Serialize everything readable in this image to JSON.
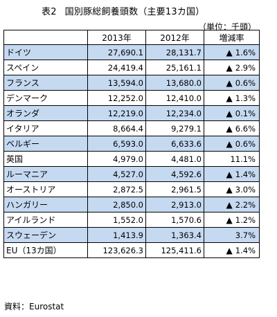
{
  "title": {
    "label": "表2",
    "text": "国別豚総飼養頭数（主要13カ国）"
  },
  "unit": "（単位：千頭）",
  "columns": [
    "",
    "2013年",
    "2012年",
    "増減率"
  ],
  "rows": [
    {
      "name": "ドイツ",
      "y2013": "27,690.1",
      "y2012": "28,131.7",
      "triangle": "▲",
      "rate": "1.6%",
      "shaded": true
    },
    {
      "name": "スペイン",
      "y2013": "24,419.4",
      "y2012": "25,161.1",
      "triangle": "▲",
      "rate": "2.9%",
      "shaded": false
    },
    {
      "name": "フランス",
      "y2013": "13,594.0",
      "y2012": "13,680.0",
      "triangle": "▲",
      "rate": "0.6%",
      "shaded": true
    },
    {
      "name": "デンマーク",
      "y2013": "12,252.0",
      "y2012": "12,410.0",
      "triangle": "▲",
      "rate": "1.3%",
      "shaded": false
    },
    {
      "name": "オランダ",
      "y2013": "12,219.0",
      "y2012": "12,234.0",
      "triangle": "▲",
      "rate": "0.1%",
      "shaded": true
    },
    {
      "name": "イタリア",
      "y2013": "8,664.4",
      "y2012": "9,279.1",
      "triangle": "▲",
      "rate": "6.6%",
      "shaded": false
    },
    {
      "name": "ベルギー",
      "y2013": "6,593.0",
      "y2012": "6,633.6",
      "triangle": "▲",
      "rate": "0.6%",
      "shaded": true
    },
    {
      "name": "英国",
      "y2013": "4,979.0",
      "y2012": "4,481.0",
      "triangle": "",
      "rate": "11.1%",
      "shaded": false
    },
    {
      "name": "ルーマニア",
      "y2013": "4,527.0",
      "y2012": "4,592.6",
      "triangle": "▲",
      "rate": "1.4%",
      "shaded": true
    },
    {
      "name": "オーストリア",
      "y2013": "2,872.5",
      "y2012": "2,961.5",
      "triangle": "▲",
      "rate": "3.0%",
      "shaded": false
    },
    {
      "name": "ハンガリー",
      "y2013": "2,850.0",
      "y2012": "2,913.0",
      "triangle": "▲",
      "rate": "2.2%",
      "shaded": true
    },
    {
      "name": "アイルランド",
      "y2013": "1,552.0",
      "y2012": "1,570.6",
      "triangle": "▲",
      "rate": "1.2%",
      "shaded": false
    },
    {
      "name": "スウェーデン",
      "y2013": "1,413.9",
      "y2012": "1,363.4",
      "triangle": "",
      "rate": "3.7%",
      "shaded": true
    },
    {
      "name": "EU（13カ国）",
      "y2013": "123,626.3",
      "y2012": "125,411.6",
      "triangle": "▲",
      "rate": "1.4%",
      "shaded": false
    }
  ],
  "source": "資料：Eurostat",
  "colors": {
    "shaded_row": "#c5d9f1",
    "border": "#000000"
  }
}
